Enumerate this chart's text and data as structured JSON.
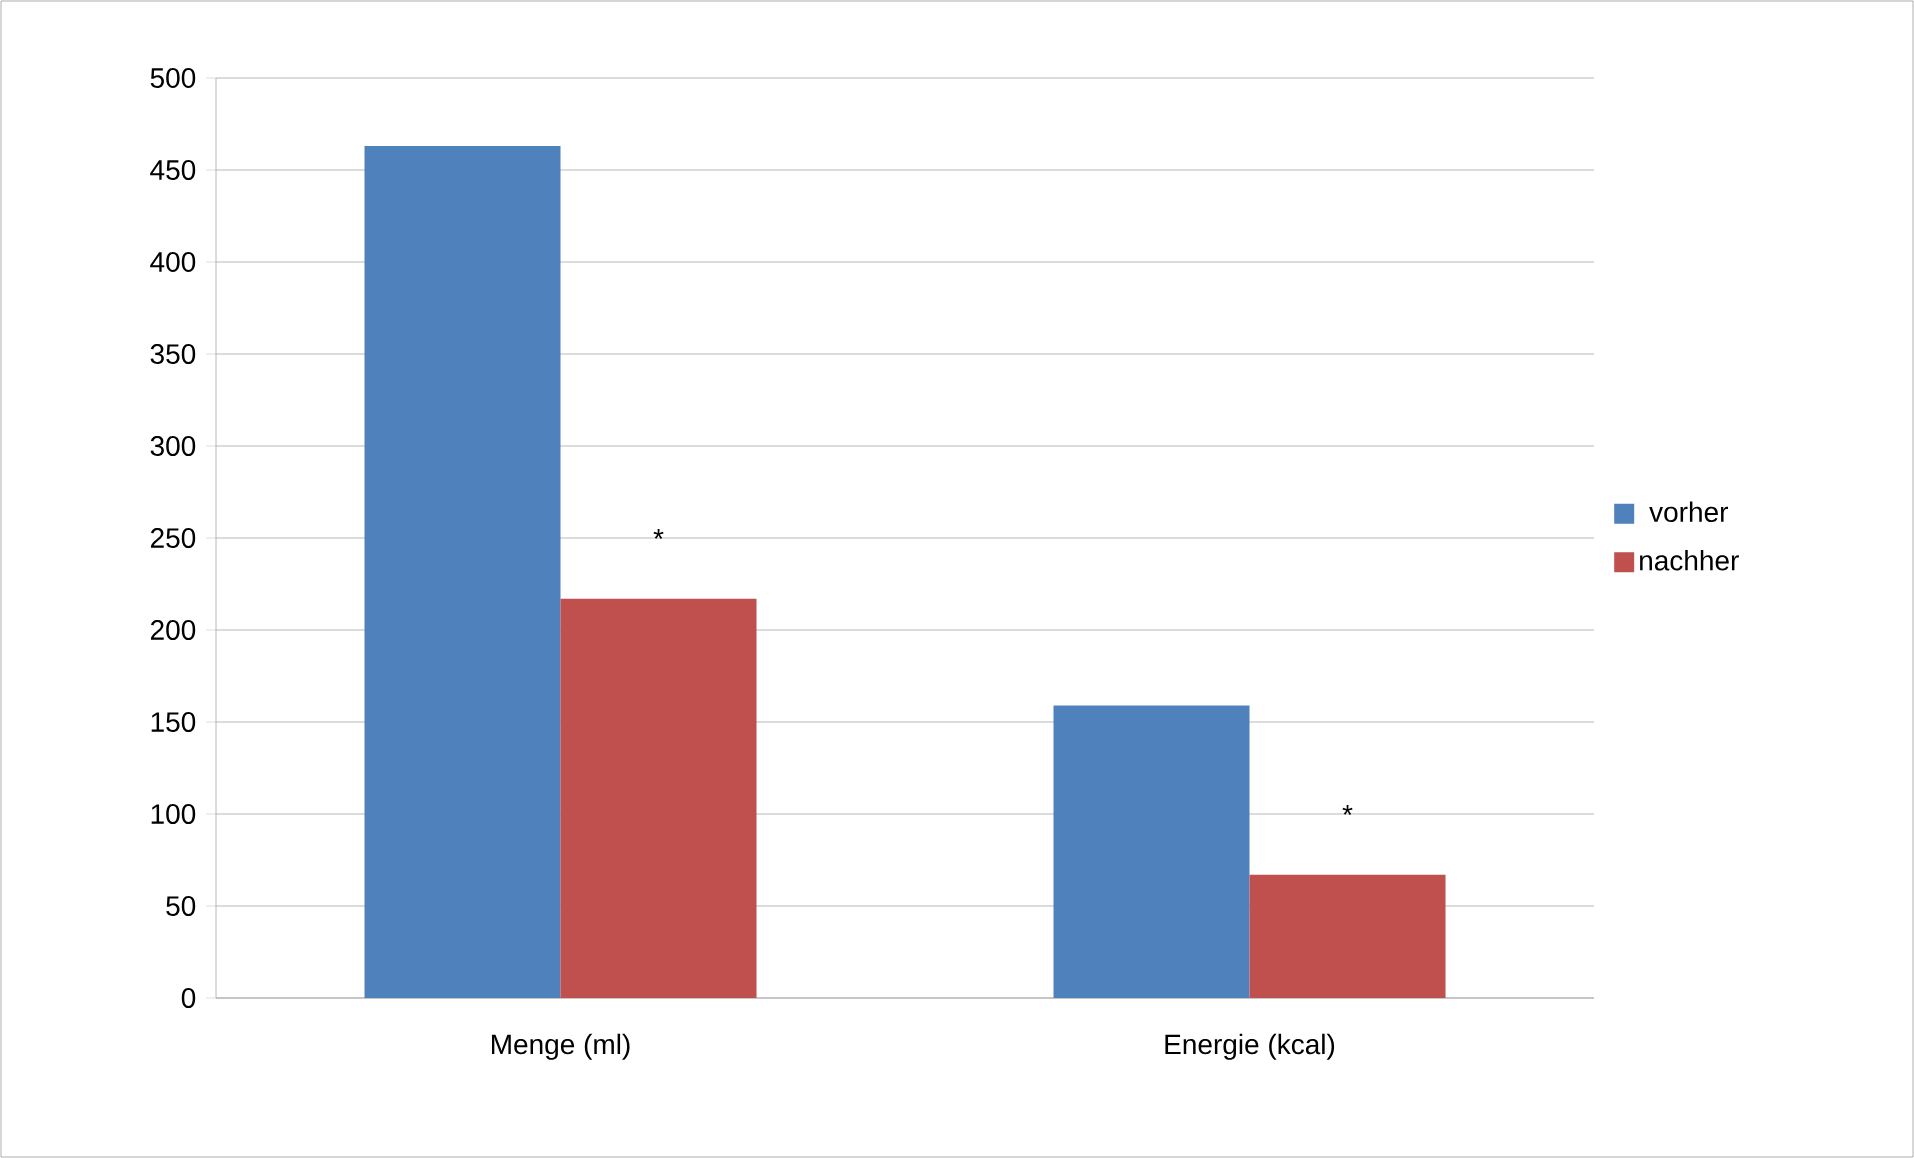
{
  "chart_data": {
    "type": "bar",
    "categories": [
      "Menge (ml)",
      "Energie (kcal)"
    ],
    "series": [
      {
        "name": "vorher",
        "color": "#4f81bd",
        "values": [
          463,
          159
        ]
      },
      {
        "name": "nachher",
        "color": "#c0504d",
        "values": [
          217,
          67
        ]
      }
    ],
    "ylim": [
      0,
      500
    ],
    "yticks": [
      0,
      50,
      100,
      150,
      200,
      250,
      300,
      350,
      400,
      450,
      500
    ],
    "grid": "y",
    "legend": "right",
    "annotations": [
      "*",
      "*"
    ]
  }
}
